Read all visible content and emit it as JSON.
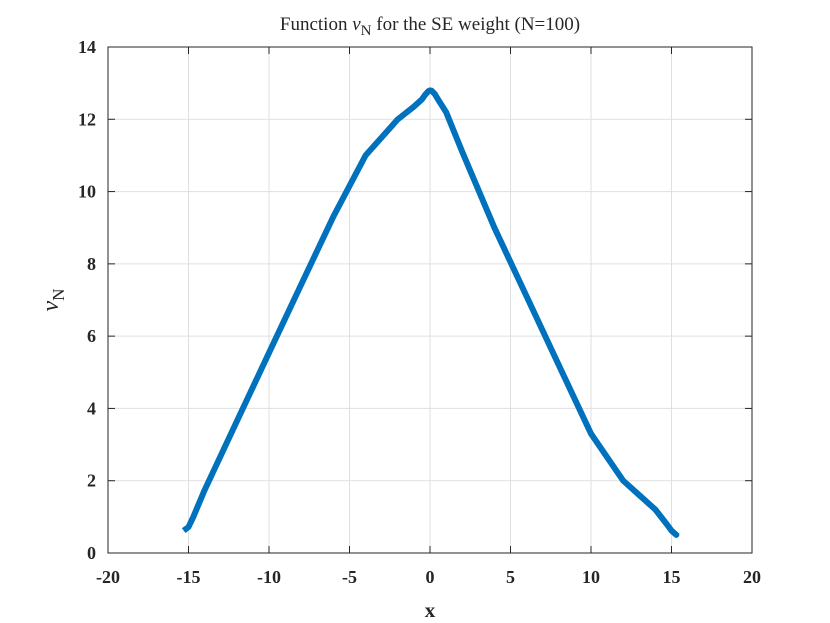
{
  "chart_data": {
    "type": "line",
    "title_prefix": "Function ",
    "title_symbol": "ν",
    "title_symbol_sub": "N",
    "title_suffix": " for the SE weight (N=100)",
    "xlabel": "x",
    "ylabel_symbol": "ν",
    "ylabel_sub": "N",
    "xlim": [
      -20,
      20
    ],
    "ylim": [
      0,
      14
    ],
    "xticks": [
      -20,
      -15,
      -10,
      -5,
      0,
      5,
      10,
      15,
      20
    ],
    "yticks": [
      0,
      2,
      4,
      6,
      8,
      10,
      12,
      14
    ],
    "grid": true,
    "line_color": "#0072BD",
    "series": [
      {
        "x": [
          -15.3,
          -15.0,
          -14.7,
          -14.0,
          -12.0,
          -10.0,
          -8.0,
          -6.0,
          -4.0,
          -2.0,
          -1.0,
          -0.5,
          -0.3,
          -0.1,
          0.0,
          0.1,
          0.3,
          0.5,
          1.0,
          2.0,
          4.0,
          6.0,
          8.0,
          10.0,
          12.0,
          14.0,
          14.7,
          15.0,
          15.3,
          15.3
        ],
        "y": [
          0.62,
          0.72,
          1.0,
          1.74,
          3.64,
          5.54,
          7.43,
          9.31,
          11.0,
          12.0,
          12.35,
          12.55,
          12.68,
          12.78,
          12.8,
          12.79,
          12.7,
          12.55,
          12.2,
          11.1,
          9.0,
          7.1,
          5.2,
          3.3,
          2.0,
          1.2,
          0.8,
          0.62,
          0.5,
          0.55
        ]
      }
    ]
  }
}
